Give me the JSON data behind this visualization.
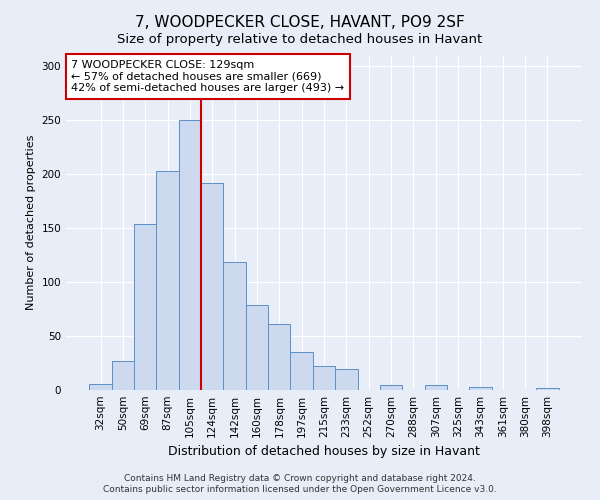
{
  "title": "7, WOODPECKER CLOSE, HAVANT, PO9 2SF",
  "subtitle": "Size of property relative to detached houses in Havant",
  "xlabel": "Distribution of detached houses by size in Havant",
  "ylabel": "Number of detached properties",
  "bar_labels": [
    "32sqm",
    "50sqm",
    "69sqm",
    "87sqm",
    "105sqm",
    "124sqm",
    "142sqm",
    "160sqm",
    "178sqm",
    "197sqm",
    "215sqm",
    "233sqm",
    "252sqm",
    "270sqm",
    "288sqm",
    "307sqm",
    "325sqm",
    "343sqm",
    "361sqm",
    "380sqm",
    "398sqm"
  ],
  "bar_values": [
    6,
    27,
    154,
    203,
    250,
    192,
    118,
    79,
    61,
    35,
    22,
    19,
    0,
    5,
    0,
    5,
    0,
    3,
    0,
    0,
    2
  ],
  "bar_color": "#ccd9ee",
  "bar_edge_color": "#5b8fc7",
  "vline_color": "#cc0000",
  "vline_x_index": 5,
  "annotation_line1": "7 WOODPECKER CLOSE: 129sqm",
  "annotation_line2": "← 57% of detached houses are smaller (669)",
  "annotation_line3": "42% of semi-detached houses are larger (493) →",
  "annotation_box_color": "white",
  "annotation_box_edge": "#cc0000",
  "ylim": [
    0,
    310
  ],
  "yticks": [
    0,
    50,
    100,
    150,
    200,
    250,
    300
  ],
  "footer_line1": "Contains HM Land Registry data © Crown copyright and database right 2024.",
  "footer_line2": "Contains public sector information licensed under the Open Government Licence v3.0.",
  "background_color": "#e8eef8",
  "plot_bg_color": "#e8eef8",
  "grid_color": "#ffffff",
  "title_fontsize": 11,
  "subtitle_fontsize": 9.5,
  "xlabel_fontsize": 9,
  "ylabel_fontsize": 8,
  "tick_fontsize": 7.5,
  "annotation_fontsize": 8,
  "footer_fontsize": 6.5
}
